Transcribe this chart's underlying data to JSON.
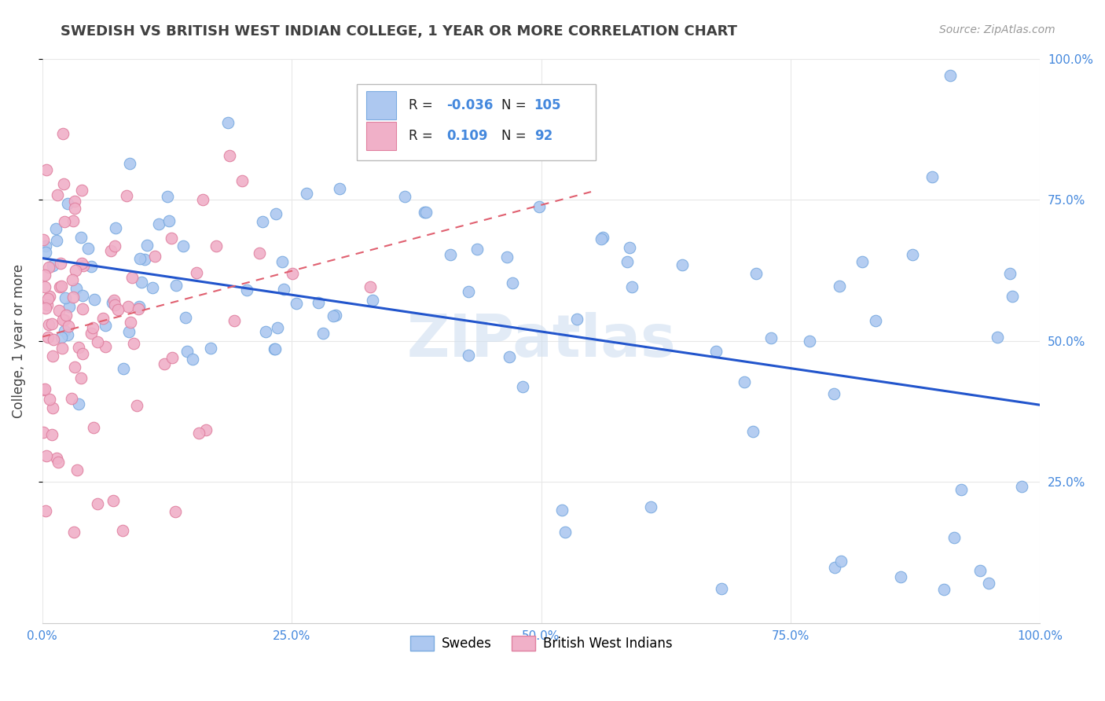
{
  "title": "SWEDISH VS BRITISH WEST INDIAN COLLEGE, 1 YEAR OR MORE CORRELATION CHART",
  "source_text": "Source: ZipAtlas.com",
  "ylabel": "College, 1 year or more",
  "watermark": "ZIPatlas",
  "swedes_label": "Swedes",
  "bwi_label": "British West Indians",
  "R_swedes": "-0.036",
  "N_swedes": "105",
  "R_bwi": "0.109",
  "N_bwi": "92",
  "swedes_color": "#adc8f0",
  "swedes_edge": "#7aaae0",
  "bwi_color": "#f0b0c8",
  "bwi_edge": "#e080a0",
  "trend_swedes_color": "#2255cc",
  "trend_bwi_color": "#e06070",
  "background_color": "#ffffff",
  "grid_color": "#e8e8e8",
  "tick_color": "#4488dd",
  "xlim": [
    0.0,
    1.0
  ],
  "ylim": [
    0.0,
    1.0
  ],
  "xtick_vals": [
    0.0,
    0.25,
    0.5,
    0.75,
    1.0
  ],
  "xtick_labels": [
    "0.0%",
    "25.0%",
    "50.0%",
    "75.0%",
    "100.0%"
  ],
  "ytick_vals": [
    0.25,
    0.5,
    0.75,
    1.0
  ],
  "ytick_labels": [
    "25.0%",
    "50.0%",
    "75.0%",
    "100.0%"
  ]
}
